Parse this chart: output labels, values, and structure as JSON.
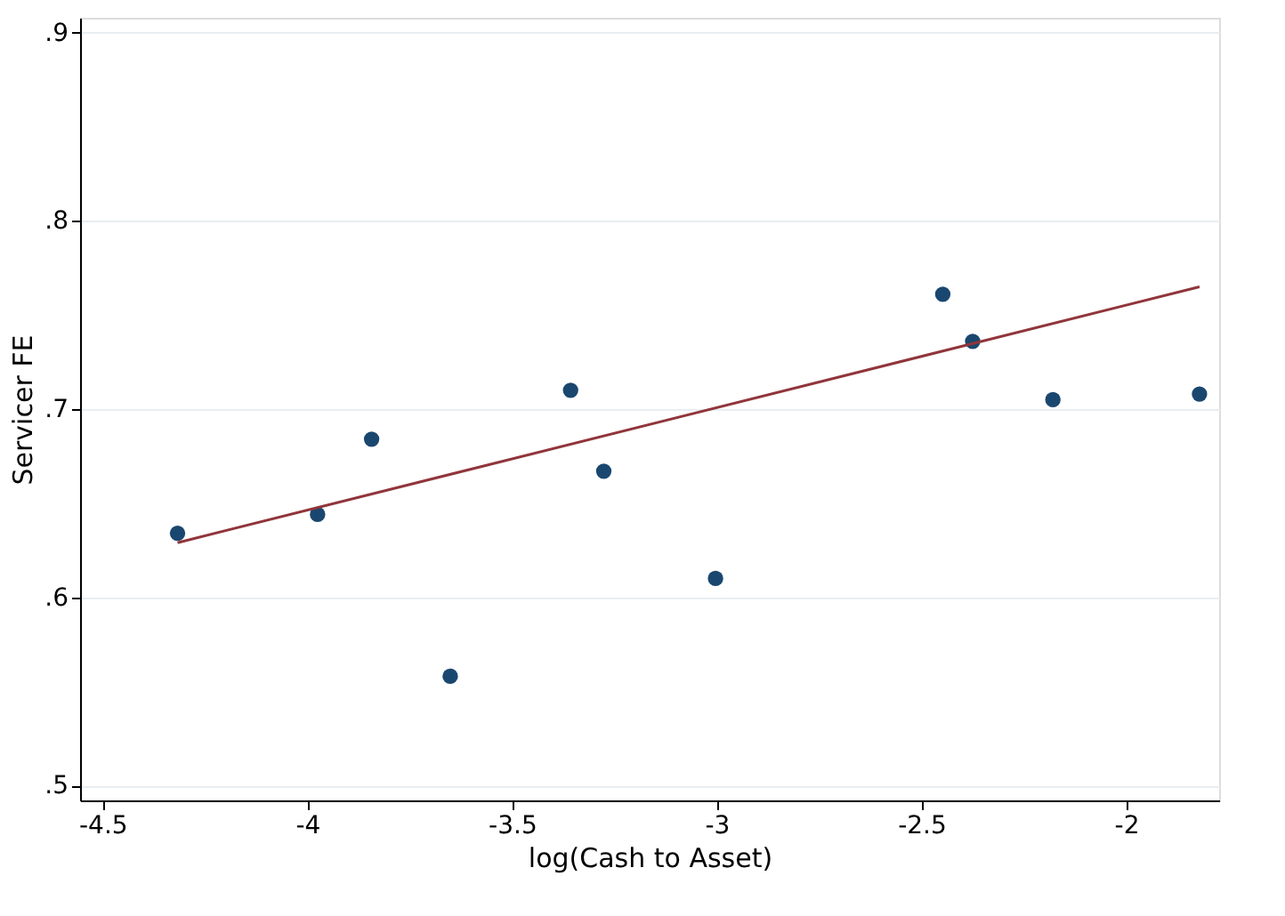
{
  "chart_data": {
    "type": "scatter",
    "xlabel": "log(Cash to Asset)",
    "ylabel": "Servicer FE",
    "x": [
      -4.317,
      -3.975,
      -3.843,
      -3.651,
      -3.357,
      -3.276,
      -3.003,
      -2.448,
      -2.375,
      -2.179,
      -1.821
    ],
    "series": [
      {
        "color": "#1a476f",
        "marker": "circle",
        "values": [
          0.634,
          0.644,
          0.684,
          0.558,
          0.71,
          0.667,
          0.61,
          0.761,
          0.736,
          0.705,
          0.708
        ]
      },
      {
        "type": "line",
        "color": "#90353b",
        "x": [
          -4.317,
          -1.821
        ],
        "values": [
          0.629,
          0.765
        ]
      }
    ],
    "xlim": [
      -4.555,
      -1.773
    ],
    "ylim": [
      0.492,
      0.908
    ],
    "xticks": [
      {
        "value": -4.5,
        "label": "-4.5"
      },
      {
        "value": -4,
        "label": "-4"
      },
      {
        "value": -3.5,
        "label": "-3.5"
      },
      {
        "value": -3,
        "label": "-3"
      },
      {
        "value": -2.5,
        "label": "-2.5"
      },
      {
        "value": -2,
        "label": "-2"
      }
    ],
    "yticks": [
      {
        "value": 0.5,
        "label": ".5"
      },
      {
        "value": 0.6,
        "label": ".6"
      },
      {
        "value": 0.7,
        "label": ".7"
      },
      {
        "value": 0.8,
        "label": ".8"
      },
      {
        "value": 0.9,
        "label": ".9"
      }
    ],
    "grid": "y"
  }
}
